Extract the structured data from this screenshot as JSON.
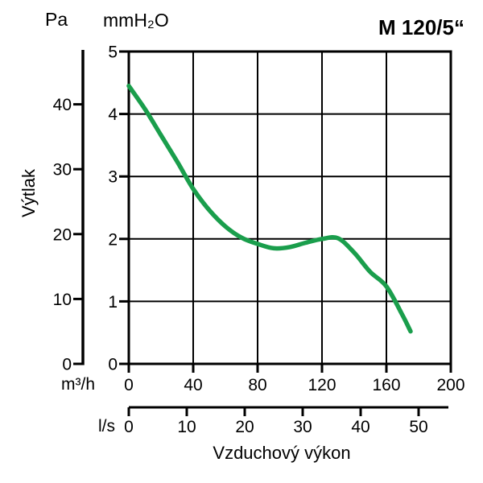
{
  "title": "M 120/5“",
  "labels": {
    "pa": "Pa",
    "mmh2o": "mmH₂O",
    "y_axis_title": "Výtlak",
    "m3h": "m³/h",
    "ls": "l/s",
    "x_axis_title": "Vzduchový výkon"
  },
  "colors": {
    "curve": "#1a9e4c",
    "axis": "#000000",
    "background": "#ffffff"
  },
  "chart_data": {
    "type": "line",
    "title": "M 120/5“",
    "xlabel": "Vzduchový výkon",
    "ylabel": "Výtlak",
    "grid": true,
    "x_primary": {
      "unit": "m³/h",
      "ticks": [
        0,
        40,
        80,
        120,
        160,
        200
      ],
      "range": [
        0,
        200
      ]
    },
    "x_secondary": {
      "unit": "l/s",
      "ticks": [
        0,
        10,
        20,
        30,
        40,
        50
      ],
      "m3h_per_ls": 3.6
    },
    "y_primary": {
      "unit": "mmH₂O",
      "ticks": [
        0,
        1,
        2,
        3,
        4,
        5
      ],
      "range": [
        0,
        5
      ]
    },
    "y_secondary": {
      "unit": "Pa",
      "ticks": [
        0,
        10,
        20,
        30,
        40
      ]
    },
    "series": [
      {
        "name": "M 120/5“",
        "color": "#1a9e4c",
        "x_m3h": [
          0,
          10,
          20,
          30,
          40,
          50,
          60,
          70,
          80,
          90,
          100,
          110,
          120,
          130,
          140,
          150,
          160,
          170,
          175
        ],
        "y_mmh2o": [
          4.45,
          4.08,
          3.66,
          3.24,
          2.8,
          2.46,
          2.2,
          2.02,
          1.92,
          1.85,
          1.87,
          1.94,
          2.0,
          2.01,
          1.78,
          1.47,
          1.24,
          0.78,
          0.52
        ]
      }
    ]
  }
}
